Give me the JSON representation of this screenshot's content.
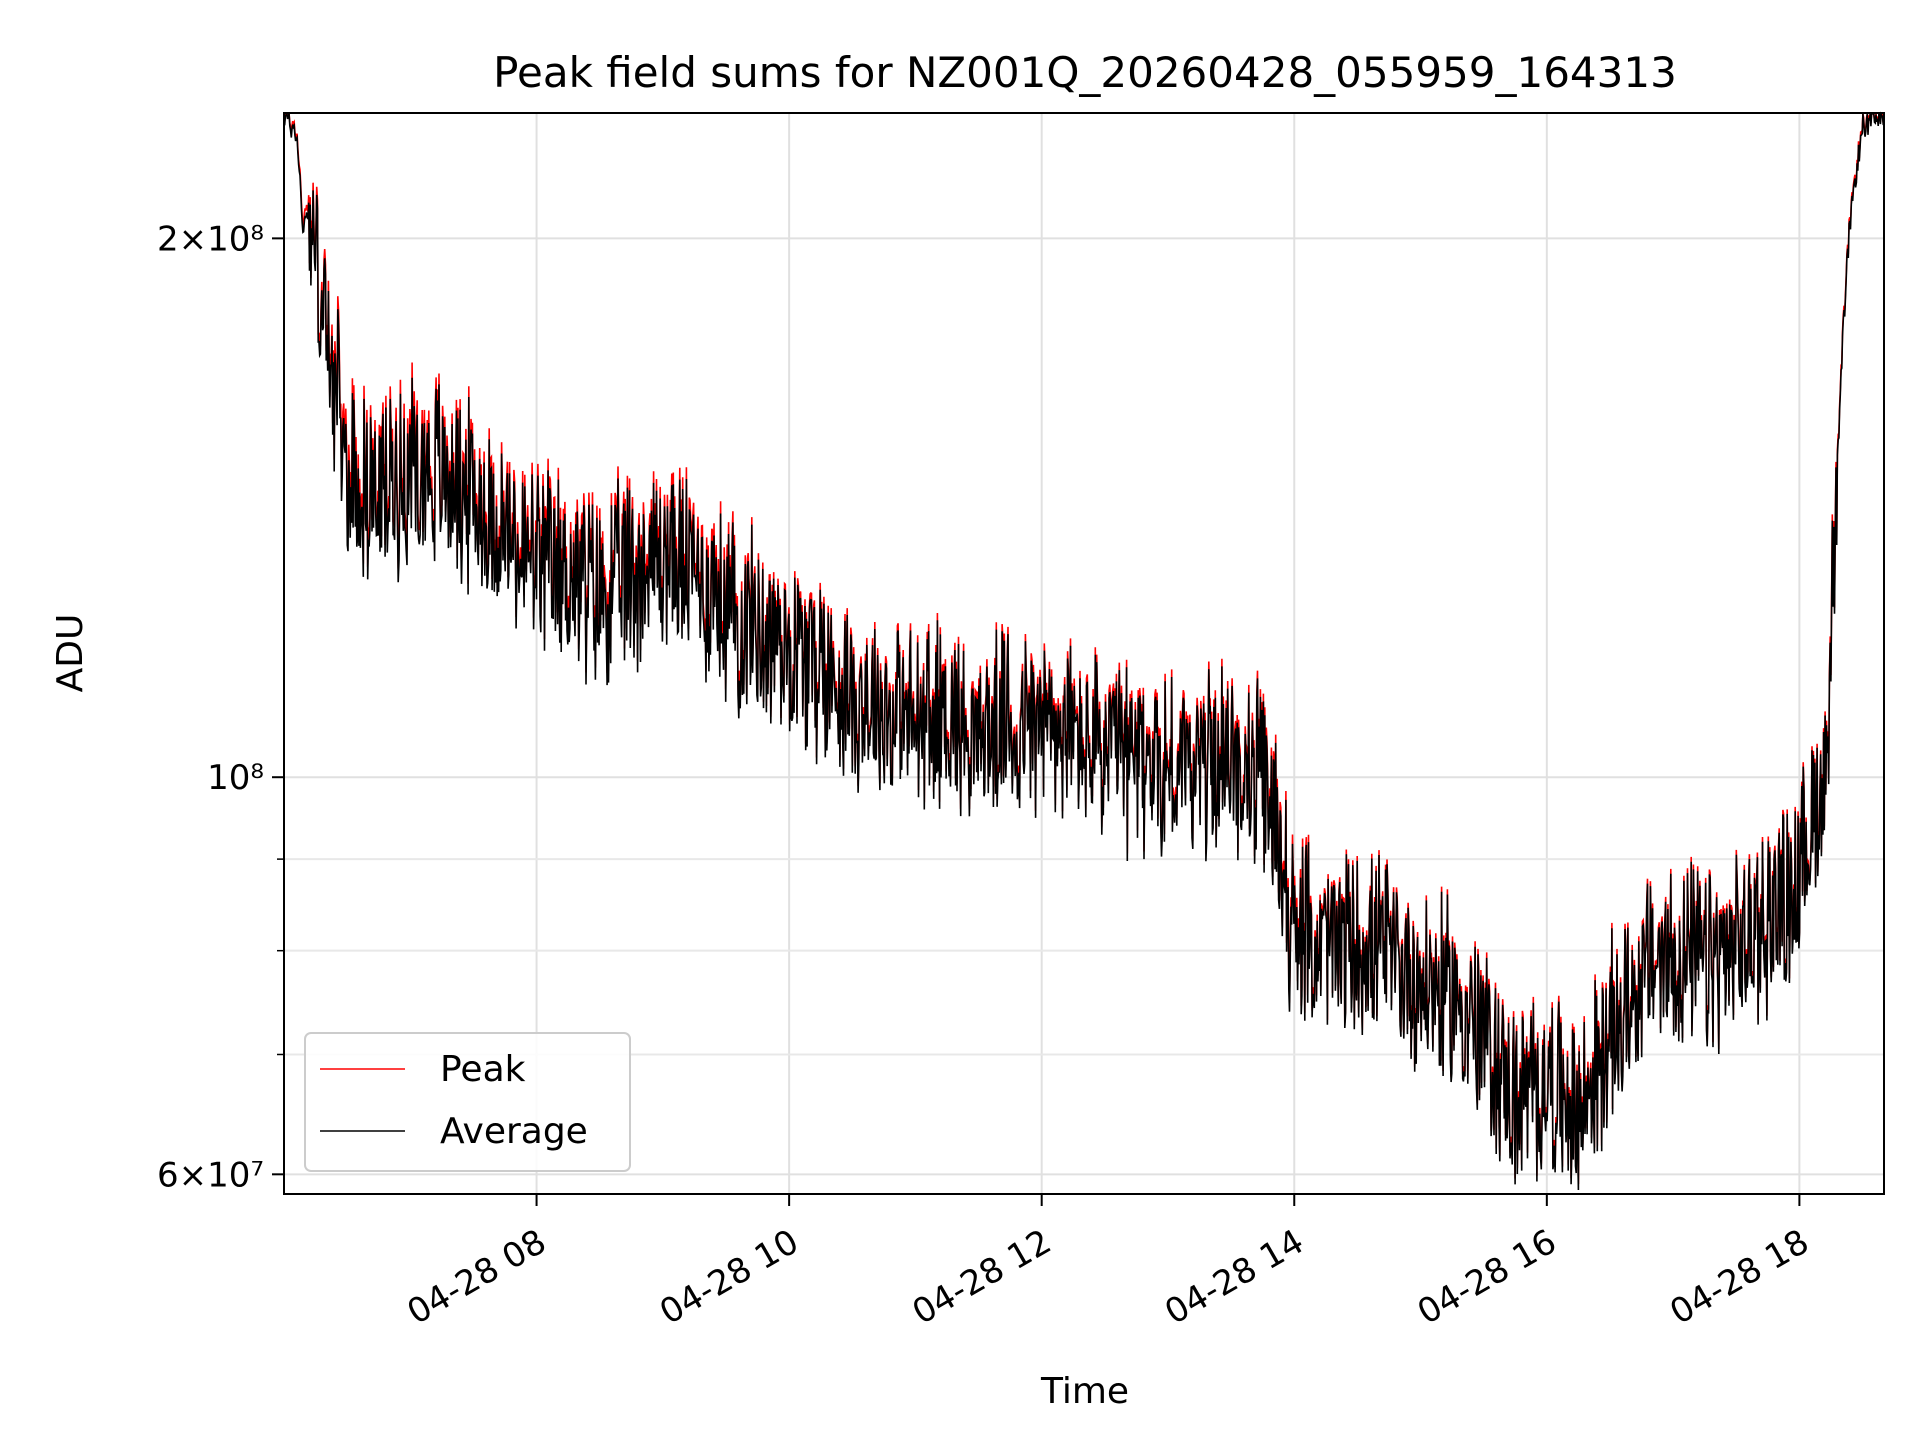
{
  "chart_data": {
    "type": "line",
    "title": "Peak field sums for NZ001Q_20260428_055959_164313",
    "xlabel": "Time",
    "ylabel": "ADU",
    "y_scale": "log",
    "ylim": [
      58500000,
      235000000
    ],
    "xlim_hours": [
      6.0,
      18.67
    ],
    "grid": true,
    "legend_position": "lower-left",
    "x_ticks": [
      {
        "hour": 8,
        "label": "04-28 08"
      },
      {
        "hour": 10,
        "label": "04-28 10"
      },
      {
        "hour": 12,
        "label": "04-28 12"
      },
      {
        "hour": 14,
        "label": "04-28 14"
      },
      {
        "hour": 16,
        "label": "04-28 16"
      },
      {
        "hour": 18,
        "label": "04-28 18"
      }
    ],
    "y_major_ticks": [
      {
        "value": 60000000,
        "base": "6",
        "exp": "7"
      },
      {
        "value": 100000000,
        "base": "",
        "exp": "8"
      },
      {
        "value": 200000000,
        "base": "2",
        "exp": "8"
      }
    ],
    "y_minor_ticks": [
      70000000,
      80000000,
      90000000
    ],
    "x_hours": [
      6.0,
      6.1,
      6.15,
      6.2,
      6.3,
      6.5,
      6.75,
      7.0,
      7.25,
      7.5,
      7.75,
      8.0,
      8.25,
      8.5,
      8.75,
      9.0,
      9.25,
      9.5,
      9.75,
      10.0,
      10.25,
      10.5,
      10.75,
      11.0,
      11.25,
      11.5,
      11.75,
      12.0,
      12.25,
      12.5,
      12.75,
      13.0,
      13.25,
      13.5,
      13.75,
      13.9,
      14.0,
      14.25,
      14.5,
      14.75,
      15.0,
      15.25,
      15.5,
      15.75,
      16.0,
      16.25,
      16.5,
      16.75,
      17.0,
      17.25,
      17.5,
      17.75,
      18.0,
      18.1,
      18.2,
      18.25,
      18.3,
      18.35,
      18.4,
      18.5,
      18.67
    ],
    "series": [
      {
        "name": "Peak",
        "color": "#ff0000",
        "values": [
          235000000,
          230000000,
          205000000,
          210000000,
          185000000,
          150000000,
          145000000,
          152000000,
          150000000,
          145000000,
          138000000,
          133000000,
          132000000,
          128000000,
          132000000,
          135000000,
          132000000,
          126000000,
          122000000,
          120000000,
          116000000,
          112000000,
          110000000,
          108000000,
          110000000,
          106000000,
          108000000,
          108000000,
          106000000,
          104000000,
          103000000,
          102000000,
          103000000,
          103000000,
          100000000,
          92000000,
          82000000,
          81000000,
          81000000,
          80000000,
          77000000,
          76000000,
          72000000,
          66000000,
          68000000,
          65000000,
          72000000,
          78000000,
          80000000,
          79000000,
          80000000,
          84000000,
          88000000,
          95000000,
          100000000,
          120000000,
          150000000,
          180000000,
          205000000,
          232000000,
          235000000
        ]
      },
      {
        "name": "Average",
        "color": "#000000",
        "values": [
          234000000,
          229000000,
          203000000,
          208000000,
          183000000,
          147000000,
          143000000,
          149000000,
          148000000,
          143000000,
          136000000,
          131000000,
          130000000,
          126000000,
          130000000,
          133000000,
          130000000,
          124000000,
          121000000,
          119000000,
          115000000,
          111000000,
          109000000,
          107000000,
          109000000,
          105000000,
          107000000,
          107000000,
          105000000,
          103000000,
          102000000,
          101000000,
          102000000,
          102000000,
          99000000,
          91000000,
          81000000,
          80500000,
          80500000,
          79500000,
          76500000,
          75500000,
          71500000,
          65500000,
          67500000,
          64500000,
          71500000,
          77500000,
          79500000,
          78500000,
          79500000,
          83500000,
          87500000,
          94500000,
          99500000,
          119000000,
          149000000,
          179000000,
          204000000,
          231000000,
          234500000
        ]
      }
    ]
  }
}
